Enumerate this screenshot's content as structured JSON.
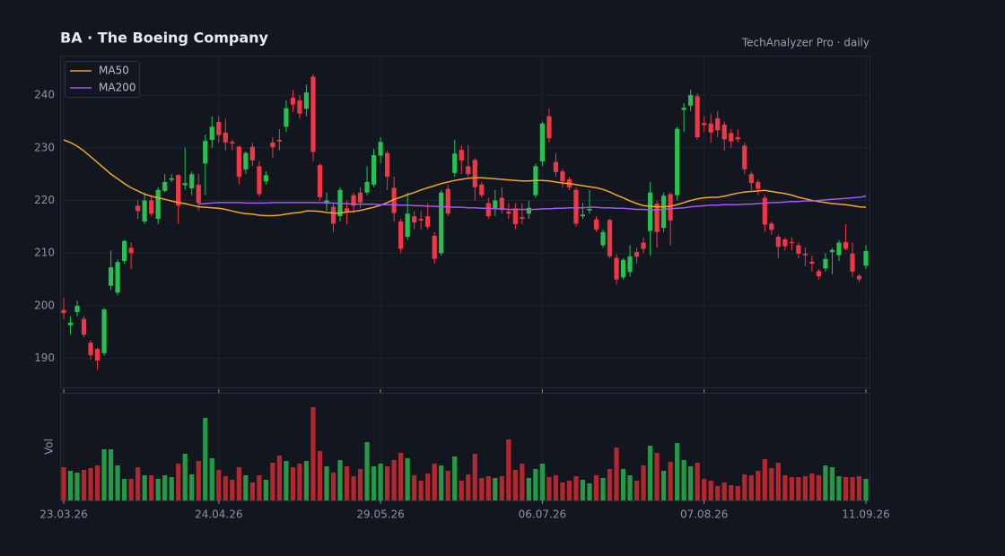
{
  "chart_data": {
    "type": "candlestick",
    "title": "BA  ·  The Boeing Company",
    "subtitle": "TechAnalyzer Pro · daily",
    "categories": [
      "23.03.26",
      null,
      null,
      null,
      null,
      null,
      null,
      null,
      null,
      null,
      null,
      null,
      null,
      null,
      null,
      null,
      null,
      null,
      null,
      null,
      null,
      null,
      null,
      "24.04.26",
      null,
      null,
      null,
      null,
      null,
      null,
      null,
      null,
      null,
      null,
      null,
      null,
      null,
      null,
      null,
      null,
      null,
      null,
      null,
      null,
      null,
      null,
      null,
      "29.05.26",
      null,
      null,
      null,
      null,
      null,
      null,
      null,
      null,
      null,
      null,
      null,
      null,
      null,
      null,
      null,
      null,
      null,
      null,
      null,
      null,
      null,
      null,
      null,
      "06.07.26",
      null,
      null,
      null,
      null,
      null,
      null,
      null,
      null,
      null,
      null,
      null,
      null,
      null,
      null,
      null,
      null,
      null,
      null,
      null,
      null,
      null,
      null,
      null,
      "07.08.26",
      null,
      null,
      null,
      null,
      null,
      null,
      null,
      null,
      null,
      null,
      null,
      null,
      null,
      null,
      null,
      null,
      null,
      null,
      null,
      null,
      null,
      null,
      null,
      "11.09.26"
    ],
    "open": [
      199.2,
      196.3,
      198.8,
      197.5,
      193,
      191.8,
      191,
      203.8,
      202.5,
      208.5,
      211,
      219,
      216,
      220,
      216.5,
      221.8,
      223.9,
      224.8,
      222.9,
      222.3,
      223,
      227,
      231.5,
      234.9,
      232.9,
      231.1,
      230.2,
      225.9,
      230.2,
      226.5,
      223.6,
      231,
      231.5,
      234,
      239.5,
      239,
      237.4,
      243.5,
      226.7,
      219.5,
      218.8,
      217,
      218.5,
      221,
      221.5,
      221.5,
      223,
      228.5,
      229,
      222.4,
      216,
      213.1,
      217,
      216.5,
      217,
      213.3,
      210,
      222.2,
      225.2,
      229.6,
      226.5,
      227.7,
      223,
      219.5,
      218.5,
      220.5,
      217.9,
      218.5,
      216.8,
      217.5,
      221,
      227.4,
      236,
      227.3,
      225.5,
      224,
      222,
      217,
      218.1,
      216.4,
      211.5,
      216.3,
      209.1,
      205.4,
      206.4,
      210.2,
      212,
      214.2,
      219.4,
      214.8,
      221.2,
      221,
      237.2,
      238,
      239.8,
      234.7,
      234.6,
      235.6,
      234.4,
      232.8,
      232,
      230.4,
      225,
      223.5,
      220.5,
      215.6,
      213.1,
      212.6,
      212.1,
      211.5,
      209.9,
      208.4,
      206.6,
      207.1,
      210.2,
      209.6,
      212.1,
      209.9,
      205.7,
      207.6
    ],
    "high": [
      201.5,
      198,
      201,
      198,
      193.5,
      192,
      199.6,
      210.5,
      208.8,
      212.5,
      212,
      220,
      221.5,
      221,
      222.5,
      225,
      225,
      225,
      230,
      225.5,
      225,
      232.5,
      236,
      236,
      235.5,
      231.5,
      230.5,
      229.3,
      231,
      227.5,
      225.5,
      232,
      233.5,
      239,
      241,
      240,
      242,
      244,
      227,
      221.5,
      219.5,
      222.5,
      220,
      221.5,
      222.5,
      226.5,
      229.8,
      232,
      229.5,
      224.5,
      216.5,
      221.5,
      218,
      218,
      219.5,
      214,
      222,
      223,
      231.5,
      230.5,
      230.5,
      228,
      223.5,
      220.5,
      222,
      222.5,
      219.5,
      219.5,
      219.5,
      220,
      227,
      235,
      237.5,
      229,
      226,
      224.5,
      222.5,
      219.5,
      222,
      217,
      214.5,
      216.5,
      209.8,
      209,
      211.5,
      211,
      213,
      223.5,
      220,
      221.5,
      221.5,
      234,
      238.5,
      241,
      240.3,
      236,
      236.5,
      237,
      235,
      233.5,
      233.5,
      231,
      225.5,
      224,
      221,
      216,
      213.5,
      213,
      213,
      212,
      211,
      209.5,
      207,
      210,
      211,
      212.5,
      215.5,
      212,
      206,
      211.5
    ],
    "low": [
      197.5,
      194.5,
      198,
      194,
      189.8,
      187.8,
      190.5,
      203,
      202,
      208,
      207,
      216.5,
      215.5,
      217,
      215.5,
      221.5,
      223.5,
      215.5,
      222,
      221,
      218,
      221,
      230,
      231,
      229.5,
      229.5,
      223,
      225,
      226.5,
      220.7,
      223,
      228,
      229.5,
      233,
      236.8,
      235.5,
      236,
      227.5,
      220,
      218,
      214,
      216,
      215.5,
      217.5,
      218.5,
      221,
      222.5,
      227,
      222,
      216,
      210,
      212.5,
      214.5,
      214.5,
      214.5,
      208,
      209.5,
      217,
      224.5,
      225,
      224.5,
      220,
      220.5,
      216.5,
      217,
      217.5,
      216.5,
      214.5,
      215.5,
      216.5,
      220.5,
      226.5,
      231,
      224.5,
      222.5,
      222,
      215,
      216.5,
      217.5,
      214,
      211,
      209,
      204,
      205,
      205.5,
      208,
      210,
      209.5,
      211,
      214,
      211.5,
      220,
      233,
      237,
      231.5,
      233,
      231,
      232,
      229.5,
      230,
      231,
      225,
      222,
      221,
      214,
      213.5,
      209,
      210.5,
      210.5,
      209,
      207.5,
      206.5,
      205,
      206.5,
      206,
      208.5,
      210.5,
      205.5,
      204.5,
      207
    ],
    "close": [
      198.6,
      196.8,
      200,
      194.5,
      190.6,
      189.6,
      199.3,
      207.3,
      208.3,
      212.3,
      210,
      218,
      220,
      217.5,
      222,
      223.5,
      224.2,
      219,
      223.3,
      225,
      219.5,
      231.3,
      234,
      232.4,
      231,
      230.8,
      224.5,
      229,
      227.6,
      221.2,
      224.8,
      230.1,
      231.2,
      237.5,
      238.2,
      236.5,
      240.5,
      229.2,
      220.6,
      220,
      215.6,
      222,
      217.8,
      219,
      219.6,
      223.5,
      228.6,
      231.1,
      224.5,
      217.6,
      210.8,
      217.5,
      215.8,
      216.2,
      215,
      208.9,
      221.5,
      217.5,
      228.9,
      227.6,
      225,
      222.5,
      221,
      217,
      220,
      218.2,
      217.5,
      215.5,
      216.5,
      218.6,
      226.5,
      234.6,
      231.8,
      225.4,
      223.6,
      222.5,
      215.6,
      217.3,
      218.4,
      214.5,
      214,
      209.4,
      205,
      208.7,
      209.4,
      209.3,
      210.8,
      221.5,
      214,
      220.9,
      216.2,
      233.6,
      237.6,
      240,
      232,
      234.3,
      232.9,
      233.3,
      231.6,
      231.2,
      231.6,
      225.9,
      223.3,
      222.2,
      215.4,
      214.4,
      211.2,
      211.3,
      211.9,
      209.9,
      209.6,
      208,
      205.6,
      208.9,
      210.6,
      212,
      210.8,
      206.5,
      205,
      210.4
    ],
    "up_color": "#26c150",
    "down_color": "#f23645",
    "series": [
      {
        "name": "MA50",
        "color": "#f5a623",
        "values": [
          231.5,
          231,
          230.3,
          229.4,
          228.3,
          227.2,
          226.1,
          225,
          224.1,
          223.2,
          222.4,
          221.8,
          221.2,
          220.8,
          220.5,
          220.2,
          219.9,
          219.6,
          219.4,
          219.1,
          218.8,
          218.7,
          218.6,
          218.5,
          218.3,
          218,
          217.7,
          217.5,
          217.4,
          217.2,
          217.1,
          217.1,
          217.2,
          217.4,
          217.6,
          217.7,
          218,
          218,
          217.9,
          217.7,
          217.6,
          217.6,
          217.8,
          217.9,
          218.1,
          218.4,
          218.7,
          219.1,
          219.6,
          220.2,
          220.6,
          221.1,
          221.5,
          222,
          222.4,
          222.8,
          223.2,
          223.5,
          223.8,
          224,
          224.2,
          224.3,
          224.3,
          224.2,
          224.1,
          224,
          223.9,
          223.8,
          223.7,
          223.7,
          223.8,
          223.8,
          223.7,
          223.5,
          223.3,
          223.2,
          223,
          222.8,
          222.6,
          222.4,
          222.1,
          221.6,
          221,
          220.5,
          219.9,
          219.4,
          219,
          218.9,
          218.8,
          218.8,
          218.9,
          219.2,
          219.6,
          220,
          220.3,
          220.5,
          220.6,
          220.6,
          220.8,
          221.1,
          221.4,
          221.6,
          221.7,
          221.8,
          221.9,
          221.7,
          221.5,
          221.3,
          221,
          220.6,
          220.3,
          220,
          219.8,
          219.6,
          219.4,
          219.3,
          219.2,
          219,
          218.8,
          218.7
        ]
      },
      {
        "name": "MA200",
        "color": "#a855f7",
        "values": [
          null,
          null,
          null,
          null,
          null,
          null,
          null,
          null,
          null,
          null,
          null,
          null,
          null,
          null,
          null,
          null,
          null,
          null,
          null,
          null,
          219.3,
          219.4,
          219.5,
          219.6,
          219.6,
          219.6,
          219.6,
          219.5,
          219.5,
          219.5,
          219.5,
          219.6,
          219.6,
          219.6,
          219.6,
          219.6,
          219.6,
          219.6,
          219.6,
          219.5,
          219.5,
          219.4,
          219.4,
          219.3,
          219.3,
          219.3,
          219.3,
          219.2,
          219.2,
          219.2,
          219.1,
          219.1,
          219,
          219,
          218.9,
          218.9,
          218.8,
          218.8,
          218.7,
          218.7,
          218.6,
          218.6,
          218.5,
          218.5,
          218.4,
          218.4,
          218.3,
          218.3,
          218.3,
          218.3,
          218.3,
          218.4,
          218.4,
          218.5,
          218.5,
          218.6,
          218.6,
          218.6,
          218.7,
          218.7,
          218.6,
          218.6,
          218.5,
          218.5,
          218.4,
          218.3,
          218.3,
          218.2,
          218.2,
          218.3,
          218.4,
          218.5,
          218.6,
          218.8,
          218.9,
          219,
          219.1,
          219.1,
          219.2,
          219.2,
          219.2,
          219.3,
          219.3,
          219.4,
          219.5,
          219.6,
          219.6,
          219.7,
          219.8,
          219.8,
          219.9,
          219.9,
          220,
          220.1,
          220.2,
          220.3,
          220.4,
          220.5,
          220.6,
          220.8
        ]
      }
    ],
    "ylim": [
      184.5,
      247.5
    ],
    "yticks": [
      190,
      200,
      210,
      220,
      230,
      240
    ],
    "grid": true,
    "legend": "upper left",
    "volume": {
      "label": "Vol",
      "ylim": [
        0,
        120
      ],
      "up_color": "#239a45",
      "down_color": "#b5262f",
      "values": [
        37,
        33,
        31,
        34,
        36,
        39,
        57,
        57,
        39,
        24,
        24,
        37,
        28,
        28,
        24,
        28,
        26,
        41,
        52,
        29,
        44,
        92,
        47,
        34,
        27,
        23,
        37,
        28,
        20,
        28,
        23,
        42,
        50,
        44,
        37,
        41,
        44,
        104,
        55,
        38,
        31,
        45,
        38,
        27,
        35,
        65,
        38,
        41,
        38,
        45,
        53,
        47,
        28,
        22,
        30,
        41,
        39,
        33,
        49,
        22,
        29,
        52,
        25,
        27,
        25,
        27,
        68,
        34,
        41,
        25,
        35,
        41,
        26,
        28,
        20,
        22,
        27,
        23,
        19,
        28,
        25,
        35,
        59,
        35,
        28,
        22,
        39,
        61,
        53,
        33,
        43,
        64,
        45,
        38,
        42,
        24,
        22,
        16,
        20,
        17,
        16,
        29,
        28,
        33,
        46,
        36,
        42,
        28,
        26,
        26,
        27,
        30,
        28,
        39,
        37,
        27,
        26,
        26,
        27,
        24
      ]
    }
  }
}
